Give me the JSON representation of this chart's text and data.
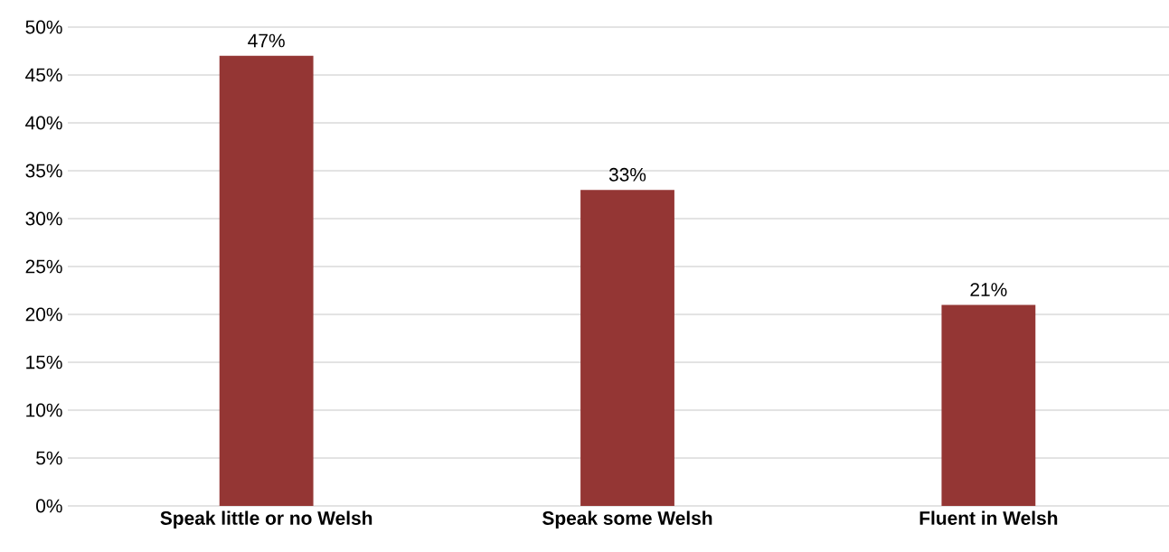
{
  "chart_data": {
    "type": "bar",
    "categories": [
      "Speak little or no Welsh",
      "Speak some Welsh",
      "Fluent in Welsh"
    ],
    "values": [
      47,
      33,
      21
    ],
    "value_labels": [
      "47%",
      "33%",
      "21%"
    ],
    "color": "#943634",
    "ylim": [
      0,
      50
    ],
    "yticks": [
      {
        "value": 0,
        "label": "0%"
      },
      {
        "value": 5,
        "label": "5%"
      },
      {
        "value": 10,
        "label": "10%"
      },
      {
        "value": 15,
        "label": "15%"
      },
      {
        "value": 20,
        "label": "20%"
      },
      {
        "value": 25,
        "label": "25%"
      },
      {
        "value": 30,
        "label": "30%"
      },
      {
        "value": 35,
        "label": "35%"
      },
      {
        "value": 40,
        "label": "40%"
      },
      {
        "value": 45,
        "label": "45%"
      },
      {
        "value": 50,
        "label": "50%"
      }
    ],
    "grid": "y"
  }
}
